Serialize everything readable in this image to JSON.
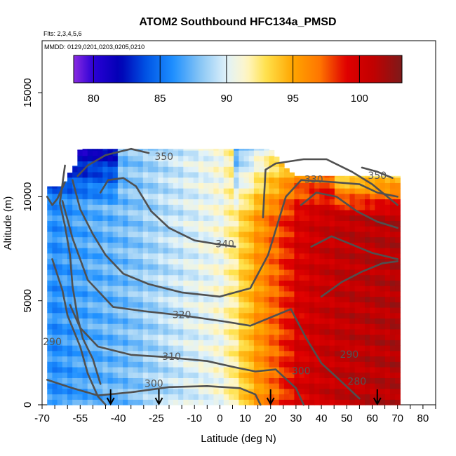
{
  "chart_data": {
    "type": "heatmap",
    "title": "ATOM2 Southbound HFC134a_PMSD",
    "annotations": [
      "Flts: 2,3,4,5,6",
      "MMDD: 0129,0201,0203,0205,0210"
    ],
    "xlabel": "Latitude (deg N)",
    "ylabel": "Altitude (m)",
    "xlim": [
      -70,
      85
    ],
    "ylim": [
      0,
      17500
    ],
    "x_ticks": [
      -70,
      -65,
      -60,
      -55,
      -50,
      -45,
      -40,
      -35,
      -30,
      -25,
      -20,
      -15,
      -10,
      -5,
      0,
      5,
      10,
      15,
      20,
      25,
      30,
      35,
      40,
      45,
      50,
      55,
      60,
      65,
      70,
      75,
      80,
      85
    ],
    "x_tick_labels": [
      "-70",
      "-55",
      "-40",
      "-25",
      "-10",
      "0",
      "10",
      "20",
      "30",
      "40",
      "50",
      "60",
      "70",
      "80"
    ],
    "x_tick_label_values": [
      -70,
      -55,
      -40,
      -25,
      -10,
      0,
      10,
      20,
      30,
      40,
      50,
      60,
      70,
      80
    ],
    "y_tick_labels": [
      "0",
      "5000",
      "10000",
      "15000"
    ],
    "y_tick_label_values": [
      0,
      5000,
      10000,
      15000
    ],
    "colorbar": {
      "range": [
        78.5,
        103.2
      ],
      "tick_labels": [
        "80",
        "85",
        "90",
        "95",
        "100"
      ],
      "tick_values": [
        80,
        85,
        90,
        95,
        100
      ],
      "stops": [
        {
          "v": 78.5,
          "c": "#8a2be2"
        },
        {
          "v": 80.0,
          "c": "#2a00d5"
        },
        {
          "v": 82.0,
          "c": "#0000b4"
        },
        {
          "v": 84.0,
          "c": "#0055e6"
        },
        {
          "v": 86.0,
          "c": "#1e90ff"
        },
        {
          "v": 88.0,
          "c": "#87c5f5"
        },
        {
          "v": 90.0,
          "c": "#e0f2fa"
        },
        {
          "v": 91.5,
          "c": "#fff6c8"
        },
        {
          "v": 93.0,
          "c": "#ffe14a"
        },
        {
          "v": 95.0,
          "c": "#ffa500"
        },
        {
          "v": 97.0,
          "c": "#ff7600"
        },
        {
          "v": 99.0,
          "c": "#e00000"
        },
        {
          "v": 101.0,
          "c": "#c20000"
        },
        {
          "v": 103.2,
          "c": "#7d1a1a"
        }
      ]
    },
    "value_field": {
      "description_values": "HFC134a_PMSD by latitude band (deg N) and altitude (m)",
      "lat_profile": [
        {
          "lat": -66,
          "v": 86.0
        },
        {
          "lat": -58,
          "v": 86.5
        },
        {
          "lat": -50,
          "v": 87.0
        },
        {
          "lat": -40,
          "v": 87.5
        },
        {
          "lat": -30,
          "v": 88.3
        },
        {
          "lat": -20,
          "v": 89.2
        },
        {
          "lat": -10,
          "v": 90.0
        },
        {
          "lat": 0,
          "v": 90.8
        },
        {
          "lat": 5,
          "v": 92.0
        },
        {
          "lat": 10,
          "v": 93.8
        },
        {
          "lat": 15,
          "v": 95.5
        },
        {
          "lat": 20,
          "v": 96.8
        },
        {
          "lat": 25,
          "v": 98.0
        },
        {
          "lat": 30,
          "v": 99.5
        },
        {
          "lat": 40,
          "v": 100.5
        },
        {
          "lat": 50,
          "v": 101.0
        },
        {
          "lat": 60,
          "v": 101.2
        },
        {
          "lat": 70,
          "v": 101.5
        }
      ],
      "top_altitude_by_lat": [
        {
          "lat": -68,
          "alt": 10500
        },
        {
          "lat": -62,
          "alt": 10500
        },
        {
          "lat": -60,
          "alt": 11000
        },
        {
          "lat": -57,
          "alt": 11500
        },
        {
          "lat": -55,
          "alt": 12300
        },
        {
          "lat": 20,
          "alt": 12300
        },
        {
          "lat": 25,
          "alt": 11500
        },
        {
          "lat": 30,
          "alt": 11000
        },
        {
          "lat": 70,
          "alt": 11000
        }
      ],
      "nx": 70,
      "ny": 48,
      "max_alt": 12500
    },
    "theta_contours": [
      {
        "label": "300",
        "label_at": [
          -26,
          1000
        ],
        "points": [
          [
            -68,
            1200
          ],
          [
            -58,
            800
          ],
          [
            -48,
            450
          ],
          [
            -35,
            600
          ],
          [
            -20,
            850
          ],
          [
            -5,
            900
          ],
          [
            8,
            800
          ],
          [
            14,
            500
          ],
          [
            16,
            0
          ]
        ]
      },
      {
        "label": "310",
        "label_at": [
          -19,
          2300
        ],
        "points": [
          [
            -59,
            4800
          ],
          [
            -55,
            3700
          ],
          [
            -48,
            2800
          ],
          [
            -35,
            2400
          ],
          [
            -22,
            2300
          ],
          [
            -5,
            2100
          ],
          [
            6,
            1800
          ],
          [
            14,
            1600
          ],
          [
            22,
            1700
          ],
          [
            30,
            800
          ],
          [
            33,
            0
          ]
        ]
      },
      {
        "label": "320",
        "label_at": [
          -15,
          4300
        ],
        "points": [
          [
            -62,
            9800
          ],
          [
            -58,
            8000
          ],
          [
            -52,
            6000
          ],
          [
            -42,
            4700
          ],
          [
            -30,
            4500
          ],
          [
            -15,
            4300
          ],
          [
            2,
            4000
          ],
          [
            12,
            3800
          ],
          [
            22,
            4300
          ],
          [
            28,
            4600
          ],
          [
            34,
            3200
          ],
          [
            40,
            2000
          ],
          [
            48,
            1100
          ],
          [
            55,
            300
          ]
        ]
      },
      {
        "label": "330",
        "label_at": [
          37,
          10800
        ],
        "points": [
          [
            -58,
            10800
          ],
          [
            -55,
            9400
          ],
          [
            -50,
            8200
          ],
          [
            -45,
            7200
          ],
          [
            -38,
            6300
          ],
          [
            -28,
            5800
          ],
          [
            -15,
            5400
          ],
          [
            0,
            5200
          ],
          [
            12,
            5600
          ],
          [
            19,
            7200
          ],
          [
            22,
            8400
          ],
          [
            26,
            10000
          ],
          [
            32,
            10800
          ],
          [
            45,
            10700
          ],
          [
            55,
            10600
          ],
          [
            62,
            10200
          ],
          [
            70,
            10000
          ]
        ]
      },
      {
        "label": "340",
        "label_at": [
          2,
          7700
        ],
        "points": [
          [
            -47,
            10200
          ],
          [
            -44,
            10800
          ],
          [
            -38,
            10900
          ],
          [
            -33,
            10500
          ],
          [
            -27,
            9300
          ],
          [
            -20,
            8500
          ],
          [
            -10,
            7900
          ],
          [
            0,
            7700
          ],
          [
            6,
            7600
          ]
        ]
      },
      {
        "label": "350",
        "label_at": [
          -22,
          11900
        ],
        "points": [
          [
            -56,
            11000
          ],
          [
            -52,
            11500
          ],
          [
            -45,
            12000
          ],
          [
            -35,
            12300
          ],
          [
            -28,
            12100
          ]
        ]
      },
      {
        "label": "350",
        "label_at": [
          62,
          11000
        ],
        "points": [
          [
            56,
            11400
          ],
          [
            62,
            11200
          ],
          [
            68,
            10900
          ]
        ]
      },
      {
        "label": "",
        "label_at": null,
        "points": [
          [
            17,
            9000
          ],
          [
            18,
            11300
          ],
          [
            22,
            11600
          ],
          [
            33,
            11800
          ],
          [
            42,
            11800
          ],
          [
            52,
            11200
          ],
          [
            60,
            10600
          ],
          [
            66,
            10000
          ],
          [
            70,
            9600
          ]
        ]
      },
      {
        "label": "",
        "label_at": null,
        "points": [
          [
            32,
            9600
          ],
          [
            38,
            10200
          ],
          [
            46,
            10000
          ],
          [
            54,
            9300
          ],
          [
            62,
            8800
          ],
          [
            70,
            8500
          ]
        ]
      },
      {
        "label": "",
        "label_at": null,
        "points": [
          [
            36,
            7600
          ],
          [
            44,
            8100
          ],
          [
            52,
            7700
          ],
          [
            60,
            7300
          ],
          [
            70,
            7000
          ]
        ]
      },
      {
        "label": "",
        "label_at": null,
        "points": [
          [
            40,
            5200
          ],
          [
            48,
            5900
          ],
          [
            56,
            6400
          ],
          [
            64,
            6800
          ],
          [
            70,
            6900
          ]
        ]
      },
      {
        "label": "",
        "label_at": null,
        "points": [
          [
            -66,
            7000
          ],
          [
            -62,
            5500
          ],
          [
            -60,
            4300
          ],
          [
            -55,
            2800
          ],
          [
            -52,
            1500
          ],
          [
            -48,
            400
          ],
          [
            -45,
            0
          ]
        ]
      },
      {
        "label": "",
        "label_at": null,
        "points": [
          [
            -61,
            11500
          ],
          [
            -63,
            9700
          ],
          [
            -61,
            8600
          ],
          [
            -59,
            7200
          ],
          [
            -58,
            5700
          ],
          [
            -56,
            4200
          ],
          [
            -54,
            3200
          ],
          [
            -50,
            2200
          ],
          [
            -47,
            1000
          ]
        ]
      },
      {
        "label": "",
        "label_at": null,
        "points": [
          [
            -68,
            10000
          ],
          [
            -66,
            9600
          ],
          [
            -64,
            9900
          ],
          [
            -61,
            10700
          ]
        ]
      }
    ],
    "contour_labels_extra": [
      {
        "label": "290",
        "label_at": [
          -66,
          3000
        ]
      },
      {
        "label": "290",
        "label_at": [
          51,
          2400
        ]
      },
      {
        "label": "300",
        "label_at": [
          32,
          1600
        ]
      },
      {
        "label": "280",
        "label_at": [
          54,
          1100
        ]
      }
    ],
    "flight_arrows_lat": [
      -43,
      -24,
      20,
      62
    ],
    "grid": false,
    "legend": "none"
  }
}
